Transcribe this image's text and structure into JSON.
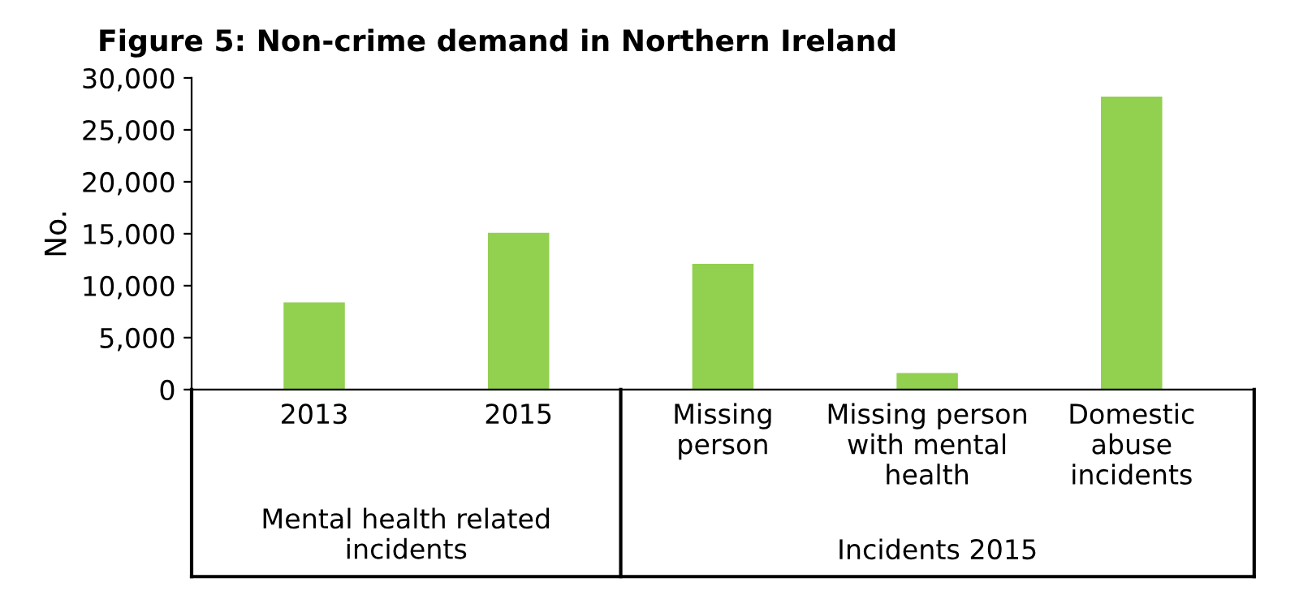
{
  "chart_data": {
    "type": "bar",
    "title": "Figure 5: Non-crime demand in Northern Ireland",
    "ylabel": "No.",
    "categories": [
      "2013",
      "2015",
      "Missing\nperson",
      "Missing person\nwith mental\nhealth",
      "Domestic\nabuse\nincidents"
    ],
    "values": [
      8400,
      15100,
      12100,
      1600,
      28200
    ],
    "color": "#92d050",
    "ylim": [
      0,
      30000
    ],
    "yticks": [
      {
        "value": 0,
        "label": "0"
      },
      {
        "value": 5000,
        "label": "5,000"
      },
      {
        "value": 10000,
        "label": "10,000"
      },
      {
        "value": 15000,
        "label": "15,000"
      },
      {
        "value": 20000,
        "label": "20,000"
      },
      {
        "value": 25000,
        "label": "25,000"
      },
      {
        "value": 30000,
        "label": "30,000"
      }
    ],
    "annotations": [
      "Mental health related\nincidents",
      "Incidents 2015"
    ],
    "grid": false
  }
}
